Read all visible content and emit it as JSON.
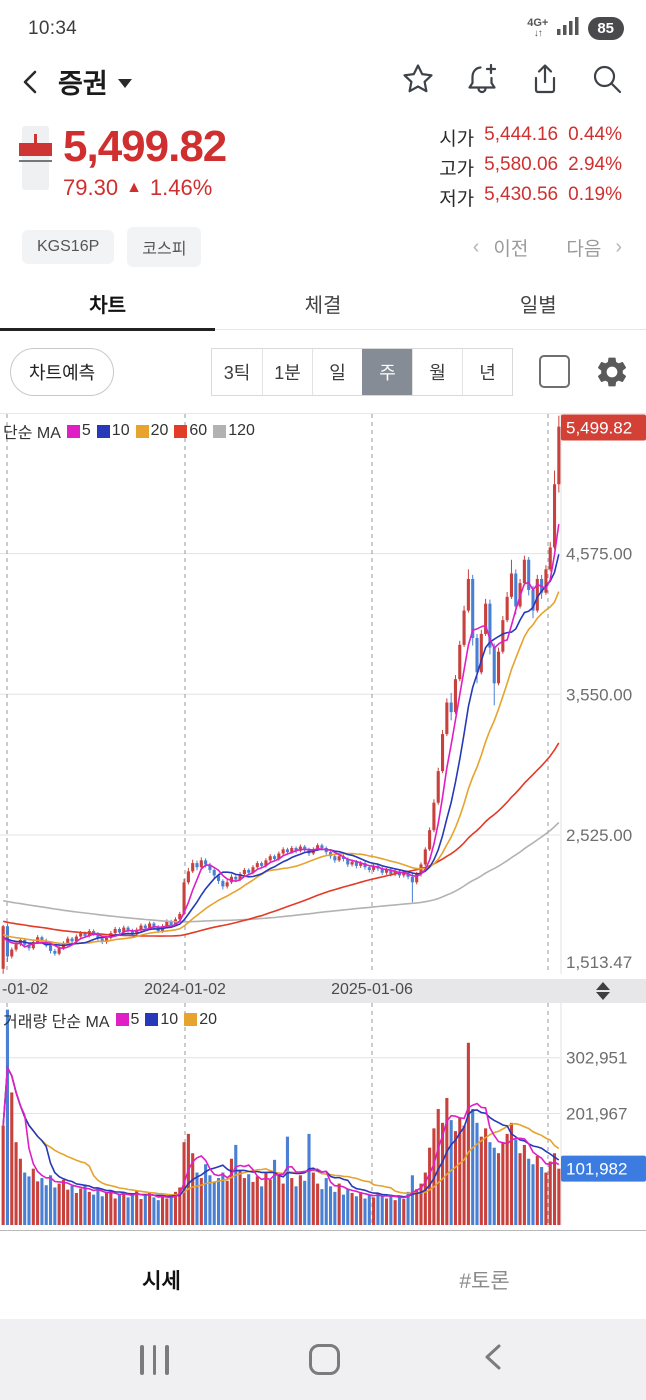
{
  "status_bar": {
    "time": "10:34",
    "network": "4G+",
    "net_arrows": "↓↑",
    "battery": "85"
  },
  "header": {
    "title": "증권"
  },
  "price": {
    "current": "5,499.82",
    "change": "79.30",
    "change_dir": "▲",
    "change_pct": "1.46%",
    "open_label": "시가",
    "open": "5,444.16",
    "open_pct": "0.44%",
    "high_label": "고가",
    "high": "5,580.06",
    "high_pct": "2.94%",
    "low_label": "저가",
    "low": "5,430.56",
    "low_pct": "0.19%"
  },
  "chips": {
    "code": "KGS16P",
    "market": "코스피"
  },
  "pager": {
    "prev_chev": "‹",
    "prev": "이전",
    "next": "다음",
    "next_chev": "›"
  },
  "tabs": {
    "chart": "차트",
    "ticks": "체결",
    "daily": "일별"
  },
  "controls": {
    "predict": "차트예측",
    "periods": [
      "3틱",
      "1분",
      "일",
      "주",
      "월",
      "년"
    ],
    "selected_period": 3
  },
  "footer": {
    "quote": "시세",
    "discuss": "#토론"
  },
  "chart_data": {
    "type": "candlestick+volume",
    "colors": {
      "up": "#c9413c",
      "down": "#4a80d4",
      "ma5": "#df1fc5",
      "ma10": "#2639b8",
      "ma20": "#e6a32d",
      "ma60": "#e23b27",
      "ma120": "#b2b2b2",
      "price_tag_bg": "#d34036",
      "volume_tag_bg": "#3c7ce0",
      "grid": "#e3e3e5",
      "dash": "#9a9aa0",
      "tick_text": "#6e6e6e"
    },
    "x_axis": {
      "labels": [
        {
          "label": "-01-02",
          "x": 2,
          "anchor": "start"
        },
        {
          "label": "2024-01-02",
          "x": 185,
          "anchor": "middle"
        },
        {
          "label": "2025-01-06",
          "x": 372,
          "anchor": "middle"
        }
      ],
      "dashed_x": [
        7,
        185,
        372,
        548
      ]
    },
    "price_pane": {
      "legend_title": "단순 MA",
      "ma_periods": [
        5,
        10,
        20,
        60,
        120
      ],
      "ma_colors": [
        "ma5",
        "ma10",
        "ma20",
        "ma60",
        "ma120"
      ],
      "ylim": [
        1512,
        5592
      ],
      "y_ticks": [
        {
          "v": 4575,
          "label": "4,575.00"
        },
        {
          "v": 3550,
          "label": "3,550.00"
        },
        {
          "v": 2525,
          "label": "2,525.00"
        },
        {
          "v": 1513.47,
          "label": "1,513.47"
        }
      ],
      "current_price": 5499.82,
      "current_price_label": "5,499.82",
      "first_open": 1550,
      "candles_hlc": [
        [
          1870,
          1513.47,
          1860
        ],
        [
          1880,
          1600,
          1640
        ],
        [
          1705,
          1625,
          1690
        ],
        [
          1745,
          1675,
          1730
        ],
        [
          1775,
          1715,
          1760
        ],
        [
          1775,
          1705,
          1725
        ],
        [
          1740,
          1682,
          1700
        ],
        [
          1760,
          1688,
          1745
        ],
        [
          1795,
          1732,
          1780
        ],
        [
          1792,
          1740,
          1755
        ],
        [
          1770,
          1705,
          1720
        ],
        [
          1735,
          1662,
          1680
        ],
        [
          1695,
          1645,
          1660
        ],
        [
          1715,
          1648,
          1700
        ],
        [
          1750,
          1688,
          1735
        ],
        [
          1785,
          1722,
          1770
        ],
        [
          1782,
          1735,
          1750
        ],
        [
          1800,
          1738,
          1785
        ],
        [
          1825,
          1772,
          1810
        ],
        [
          1822,
          1775,
          1790
        ],
        [
          1840,
          1778,
          1825
        ],
        [
          1838,
          1790,
          1805
        ],
        [
          1818,
          1755,
          1770
        ],
        [
          1782,
          1730,
          1745
        ],
        [
          1790,
          1732,
          1775
        ],
        [
          1825,
          1762,
          1810
        ],
        [
          1855,
          1798,
          1840
        ],
        [
          1852,
          1800,
          1815
        ],
        [
          1865,
          1802,
          1850
        ],
        [
          1862,
          1815,
          1830
        ],
        [
          1842,
          1785,
          1800
        ],
        [
          1850,
          1788,
          1835
        ],
        [
          1880,
          1822,
          1865
        ],
        [
          1877,
          1830,
          1845
        ],
        [
          1895,
          1832,
          1880
        ],
        [
          1892,
          1840,
          1855
        ],
        [
          1868,
          1810,
          1825
        ],
        [
          1875,
          1812,
          1860
        ],
        [
          1910,
          1848,
          1895
        ],
        [
          1907,
          1855,
          1870
        ],
        [
          1925,
          1858,
          1910
        ],
        [
          1965,
          1898,
          1950
        ],
        [
          2205,
          1940,
          2180
        ],
        [
          2285,
          2165,
          2260
        ],
        [
          2345,
          2248,
          2320
        ],
        [
          2338,
          2268,
          2290
        ],
        [
          2362,
          2278,
          2340
        ],
        [
          2355,
          2288,
          2310
        ],
        [
          2322,
          2248,
          2270
        ],
        [
          2282,
          2208,
          2230
        ],
        [
          2242,
          2168,
          2190
        ],
        [
          2202,
          2128,
          2150
        ],
        [
          2198,
          2135,
          2180
        ],
        [
          2238,
          2168,
          2220
        ],
        [
          2232,
          2180,
          2200
        ],
        [
          2255,
          2188,
          2240
        ],
        [
          2285,
          2228,
          2270
        ],
        [
          2282,
          2232,
          2250
        ],
        [
          2305,
          2238,
          2290
        ],
        [
          2335,
          2278,
          2320
        ],
        [
          2332,
          2282,
          2300
        ],
        [
          2355,
          2288,
          2340
        ],
        [
          2385,
          2328,
          2370
        ],
        [
          2382,
          2332,
          2350
        ],
        [
          2405,
          2338,
          2390
        ],
        [
          2435,
          2378,
          2420
        ],
        [
          2432,
          2382,
          2400
        ],
        [
          2445,
          2388,
          2430
        ],
        [
          2442,
          2392,
          2410
        ],
        [
          2455,
          2398,
          2440
        ],
        [
          2452,
          2402,
          2420
        ],
        [
          2432,
          2372,
          2390
        ],
        [
          2435,
          2378,
          2420
        ],
        [
          2465,
          2408,
          2450
        ],
        [
          2462,
          2412,
          2430
        ],
        [
          2442,
          2382,
          2400
        ],
        [
          2412,
          2352,
          2370
        ],
        [
          2382,
          2322,
          2340
        ],
        [
          2385,
          2328,
          2370
        ],
        [
          2382,
          2332,
          2350
        ],
        [
          2362,
          2292,
          2310
        ],
        [
          2345,
          2295,
          2330
        ],
        [
          2342,
          2282,
          2300
        ],
        [
          2335,
          2285,
          2320
        ],
        [
          2332,
          2272,
          2290
        ],
        [
          2302,
          2252,
          2270
        ],
        [
          2315,
          2255,
          2300
        ],
        [
          2312,
          2262,
          2280
        ],
        [
          2292,
          2232,
          2250
        ],
        [
          2285,
          2235,
          2270
        ],
        [
          2282,
          2222,
          2240
        ],
        [
          2275,
          2225,
          2260
        ],
        [
          2272,
          2212,
          2230
        ],
        [
          2265,
          2215,
          2250
        ],
        [
          2262,
          2202,
          2220
        ],
        [
          2252,
          2035,
          2180
        ],
        [
          2255,
          2165,
          2240
        ],
        [
          2325,
          2222,
          2310
        ],
        [
          2435,
          2298,
          2420
        ],
        [
          2580,
          2408,
          2560
        ],
        [
          2785,
          2545,
          2760
        ],
        [
          3015,
          2745,
          2990
        ],
        [
          3290,
          2975,
          3260
        ],
        [
          3520,
          3245,
          3490
        ],
        [
          3560,
          3360,
          3420
        ],
        [
          3690,
          3405,
          3660
        ],
        [
          3940,
          3645,
          3910
        ],
        [
          4195,
          3895,
          4160
        ],
        [
          4460,
          4145,
          4390
        ],
        [
          4420,
          3905,
          3960
        ],
        [
          3990,
          3630,
          3710
        ],
        [
          4020,
          3695,
          3990
        ],
        [
          4245,
          3975,
          4210
        ],
        [
          4240,
          3840,
          3890
        ],
        [
          3920,
          3470,
          3630
        ],
        [
          3890,
          3615,
          3860
        ],
        [
          4120,
          3845,
          4090
        ],
        [
          4295,
          4075,
          4260
        ],
        [
          4530,
          4245,
          4430
        ],
        [
          4460,
          4130,
          4190
        ],
        [
          4390,
          4175,
          4360
        ],
        [
          4560,
          4345,
          4530
        ],
        [
          4550,
          4270,
          4310
        ],
        [
          4340,
          4105,
          4160
        ],
        [
          4420,
          4145,
          4390
        ],
        [
          4420,
          4245,
          4290
        ],
        [
          4490,
          4275,
          4460
        ],
        [
          4660,
          4445,
          4620
        ],
        [
          5180,
          4605,
          5080
        ],
        [
          5580.06,
          5020,
          5499.82
        ]
      ]
    },
    "volume_pane": {
      "legend_title": "거래량 단순 MA",
      "ma_periods": [
        5,
        10,
        20
      ],
      "ma_colors": [
        "ma5",
        "ma10",
        "ma20"
      ],
      "ylim": [
        0,
        402000
      ],
      "y_ticks": [
        {
          "v": 302951,
          "label": "302,951"
        },
        {
          "v": 201967,
          "label": "201,967"
        }
      ],
      "current_volume": 101982,
      "current_volume_label": "101,982",
      "values": [
        180000,
        390000,
        240000,
        150000,
        120000,
        95000,
        88000,
        102000,
        79000,
        85000,
        72000,
        90000,
        68000,
        75000,
        82000,
        64000,
        71000,
        58000,
        66000,
        73000,
        60000,
        55000,
        67000,
        52000,
        58000,
        63000,
        48000,
        55000,
        60000,
        50000,
        56000,
        62000,
        47000,
        53000,
        58000,
        50000,
        45000,
        52000,
        48000,
        55000,
        60000,
        68000,
        150000,
        165000,
        130000,
        95000,
        85000,
        110000,
        90000,
        78000,
        85000,
        95000,
        80000,
        120000,
        145000,
        100000,
        85000,
        92000,
        78000,
        88000,
        70000,
        95000,
        82000,
        118000,
        90000,
        75000,
        160000,
        85000,
        70000,
        90000,
        80000,
        165000,
        95000,
        75000,
        65000,
        85000,
        70000,
        60000,
        75000,
        55000,
        65000,
        58000,
        52000,
        60000,
        48000,
        55000,
        50000,
        58000,
        52000,
        48000,
        55000,
        45000,
        52000,
        47000,
        60000,
        90000,
        65000,
        75000,
        95000,
        140000,
        175000,
        210000,
        185000,
        230000,
        190000,
        170000,
        195000,
        180000,
        330000,
        210000,
        185000,
        160000,
        175000,
        150000,
        140000,
        130000,
        150000,
        165000,
        185000,
        155000,
        130000,
        145000,
        120000,
        110000,
        125000,
        105000,
        95000,
        115000,
        130000,
        101982
      ]
    }
  }
}
